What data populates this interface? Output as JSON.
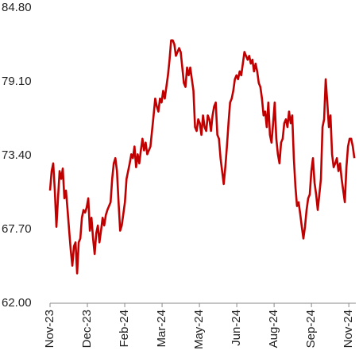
{
  "chart_data": {
    "type": "line",
    "x": [
      0,
      0.064,
      0.128,
      0.192,
      0.256,
      0.32,
      0.384,
      0.448,
      0.512,
      0.576,
      0.64,
      0.704,
      0.768,
      0.832,
      0.896,
      0.96,
      1.024,
      1.088,
      1.152,
      1.216,
      1.28,
      1.344,
      1.408,
      1.472,
      1.536,
      1.6,
      1.664,
      1.728,
      1.792,
      1.856,
      1.92,
      1.984,
      2.048,
      2.112,
      2.176,
      2.24,
      2.304,
      2.368,
      2.432,
      2.496,
      2.56,
      2.624,
      2.688,
      2.752,
      2.816,
      2.88,
      2.944,
      3.008,
      3.072,
      3.136,
      3.2,
      3.264,
      3.328,
      3.392,
      3.456,
      3.52,
      3.584,
      3.648,
      3.712,
      3.776,
      3.84,
      3.904,
      3.968,
      4.032,
      4.096,
      4.16,
      4.224,
      4.288,
      4.352,
      4.416,
      4.48,
      4.544,
      4.608,
      4.672,
      4.736,
      4.8,
      4.864,
      4.928,
      4.992,
      5.056,
      5.12,
      5.184,
      5.248,
      5.312,
      5.376,
      5.44,
      5.504,
      5.568,
      5.632,
      5.696,
      5.76,
      5.824,
      5.888,
      5.952,
      6.016,
      6.08,
      6.144,
      6.208,
      6.272,
      6.336,
      6.4,
      6.464,
      6.528,
      6.592,
      6.656,
      6.72,
      6.784,
      6.848,
      6.912,
      6.976,
      7.04,
      7.104,
      7.168,
      7.232,
      7.296,
      7.36,
      7.424,
      7.488,
      7.552,
      7.616,
      7.68,
      7.744,
      7.808,
      7.872,
      7.936,
      8,
      8.064,
      8.128,
      8.192,
      8.256,
      8.32,
      8.384,
      8.448,
      8.512,
      8.576,
      8.64,
      8.704,
      8.768,
      8.832,
      8.896,
      8.96,
      9.024,
      9.088,
      9.152,
      9.216,
      9.28,
      9.344,
      9.408,
      9.472,
      9.536,
      9.6,
      9.664,
      9.728,
      9.792,
      9.856,
      9.92,
      9.984,
      10.048,
      10.112,
      10.176,
      10.24,
      10.304,
      10.368,
      10.432,
      10.496,
      10.56,
      10.624,
      10.688,
      10.752,
      10.816,
      10.88,
      10.944,
      11.008,
      11.072,
      11.136,
      11.2,
      11.264,
      11.328,
      11.392,
      11.456,
      11.52,
      11.584,
      11.648,
      11.712,
      11.776,
      11.84,
      11.904,
      11.968,
      12.032,
      12.096,
      12.16,
      12.224
    ],
    "series": [
      {
        "color": "#c00000",
        "values": [
          70.7,
          72.2,
          72.8,
          70.7,
          67.9,
          70.1,
          72.2,
          71.6,
          72.4,
          70.1,
          70.7,
          69.2,
          67.6,
          66.1,
          64.9,
          66.4,
          66.7,
          64.3,
          66.7,
          67.0,
          68.6,
          69.2,
          69.0,
          69.4,
          70.1,
          67.6,
          68.6,
          67.0,
          65.8,
          67.4,
          68.0,
          66.7,
          67.6,
          68.6,
          68.0,
          68.8,
          69.2,
          69.5,
          69.8,
          71.6,
          72.8,
          73.2,
          72.2,
          69.8,
          67.6,
          68.0,
          68.9,
          69.8,
          71.6,
          72.2,
          72.8,
          73.5,
          73.2,
          74.1,
          72.5,
          73.5,
          72.8,
          73.8,
          74.7,
          73.8,
          74.4,
          73.5,
          73.8,
          74.1,
          75.3,
          76.5,
          77.8,
          77.2,
          76.8,
          77.8,
          77.5,
          78.4,
          77.8,
          78.7,
          79.6,
          80.8,
          82.3,
          82.3,
          82.0,
          81.1,
          81.4,
          81.7,
          81.4,
          80.2,
          79.0,
          78.7,
          80.2,
          79.6,
          80.2,
          79.3,
          78.4,
          75.6,
          75.3,
          76.2,
          75.9,
          75.0,
          76.5,
          75.6,
          75.3,
          76.5,
          76.2,
          75.3,
          76.5,
          77.2,
          77.5,
          75.0,
          74.7,
          73.2,
          72.2,
          71.2,
          72.5,
          74.1,
          75.9,
          77.5,
          77.8,
          78.4,
          79.3,
          79.6,
          79.3,
          79.9,
          79.6,
          80.5,
          81.4,
          81.1,
          80.8,
          81.1,
          80.5,
          80.8,
          79.9,
          80.5,
          79.9,
          79.0,
          78.7,
          77.8,
          76.5,
          76.8,
          75.6,
          77.5,
          75.0,
          74.4,
          75.9,
          77.5,
          74.7,
          73.5,
          72.8,
          74.4,
          74.7,
          75.9,
          76.2,
          75.6,
          76.8,
          75.9,
          76.5,
          73.2,
          71.0,
          69.5,
          69.8,
          68.9,
          67.9,
          67.0,
          67.9,
          69.2,
          70.1,
          70.4,
          72.2,
          73.2,
          71.3,
          70.4,
          69.2,
          70.4,
          71.6,
          75.6,
          76.2,
          79.3,
          77.5,
          75.6,
          76.5,
          73.5,
          72.5,
          72.8,
          73.2,
          72.2,
          72.8,
          71.6,
          70.7,
          69.8,
          72.5,
          74.1,
          74.7,
          74.7,
          74.1,
          73.2
        ]
      }
    ],
    "xlim": [
      0,
      12.25
    ],
    "xticks": [
      {
        "value": 0,
        "label": "Nov-23"
      },
      {
        "value": 1.5,
        "label": "Dec-23"
      },
      {
        "value": 3,
        "label": "Feb-24"
      },
      {
        "value": 4.5,
        "label": "Mar-24"
      },
      {
        "value": 6,
        "label": "May-24"
      },
      {
        "value": 7.5,
        "label": "Jun-24"
      },
      {
        "value": 9,
        "label": "Aug-24"
      },
      {
        "value": 10.5,
        "label": "Sep-24"
      },
      {
        "value": 12,
        "label": "Nov-24"
      }
    ],
    "ylim": [
      62,
      84.8
    ],
    "yticks": [
      {
        "value": 62,
        "label": "62.00"
      },
      {
        "value": 67.7,
        "label": "67.70"
      },
      {
        "value": 73.4,
        "label": "73.40"
      },
      {
        "value": 79.1,
        "label": "79.10"
      },
      {
        "value": 84.8,
        "label": "84.80"
      }
    ],
    "grid": false
  }
}
